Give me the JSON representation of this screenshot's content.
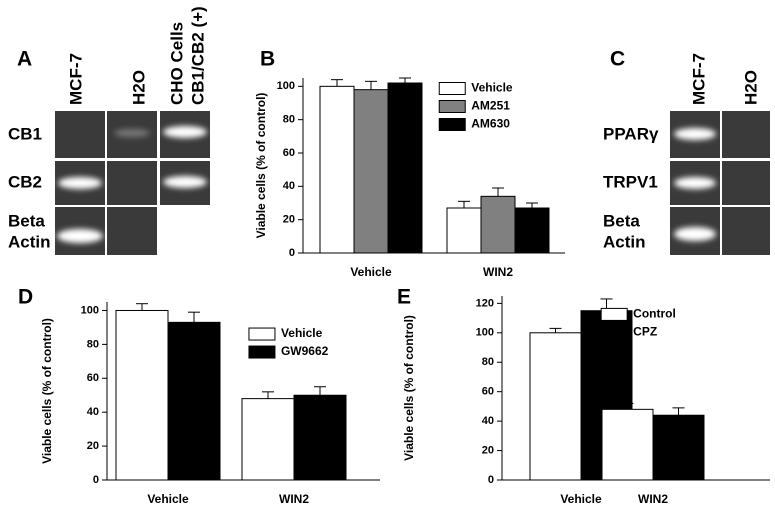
{
  "figure": {
    "panel_labels": [
      "A",
      "B",
      "C",
      "D",
      "E"
    ],
    "gel_A": {
      "lanes": [
        [
          "MCF-7"
        ],
        [
          "H2O"
        ],
        [
          "CHO Cells",
          "CB1/CB2 (+)"
        ]
      ],
      "rows": [
        [
          "CB1"
        ],
        [
          "CB2"
        ],
        [
          "Beta",
          "Actin"
        ]
      ]
    },
    "gel_C": {
      "lanes": [
        [
          "MCF-7"
        ],
        [
          "H2O"
        ]
      ],
      "rows": [
        [
          "PPARγ"
        ],
        [
          "TRPV1"
        ],
        [
          "Beta",
          "Actin"
        ]
      ]
    }
  },
  "chart_data": [
    {
      "type": "bar",
      "y_label": "Viable cells (% of control)",
      "categories": [
        "Vehicle",
        "WIN2"
      ],
      "series": [
        {
          "name": "Vehicle",
          "color": "#ffffff",
          "values": [
            100,
            27
          ],
          "errors": [
            4,
            4
          ]
        },
        {
          "name": "AM251",
          "color": "#808080",
          "values": [
            98,
            34
          ],
          "errors": [
            5,
            5
          ]
        },
        {
          "name": "AM630",
          "color": "#000000",
          "values": [
            102,
            27
          ],
          "errors": [
            3,
            3
          ]
        }
      ],
      "ylim": [
        0,
        105
      ],
      "yticks": [
        0,
        20,
        40,
        60,
        80,
        100
      ],
      "legend": "upper right"
    },
    {
      "type": "bar",
      "y_label": "Viable cells (% of control)",
      "categories": [
        "Vehicle",
        "WIN2"
      ],
      "series": [
        {
          "name": "Vehicle",
          "color": "#ffffff",
          "values": [
            100,
            48
          ],
          "errors": [
            4,
            4
          ]
        },
        {
          "name": "GW9662",
          "color": "#000000",
          "values": [
            93,
            50
          ],
          "errors": [
            6,
            5
          ]
        }
      ],
      "ylim": [
        0,
        105
      ],
      "yticks": [
        0,
        20,
        40,
        60,
        80,
        100
      ],
      "legend": "right"
    },
    {
      "type": "bar",
      "y_label": "Viable cells (% of control)",
      "categories": [
        "Vehicle",
        "WIN2"
      ],
      "series": [
        {
          "name": "Control",
          "color": "#ffffff",
          "values": [
            100,
            48
          ],
          "errors": [
            3,
            4
          ]
        },
        {
          "name": "CPZ",
          "color": "#000000",
          "values": [
            115,
            44
          ],
          "errors": [
            8,
            5
          ]
        }
      ],
      "ylim": [
        0,
        125
      ],
      "yticks": [
        0,
        20,
        40,
        60,
        80,
        100,
        120
      ],
      "legend": "upper left"
    }
  ]
}
